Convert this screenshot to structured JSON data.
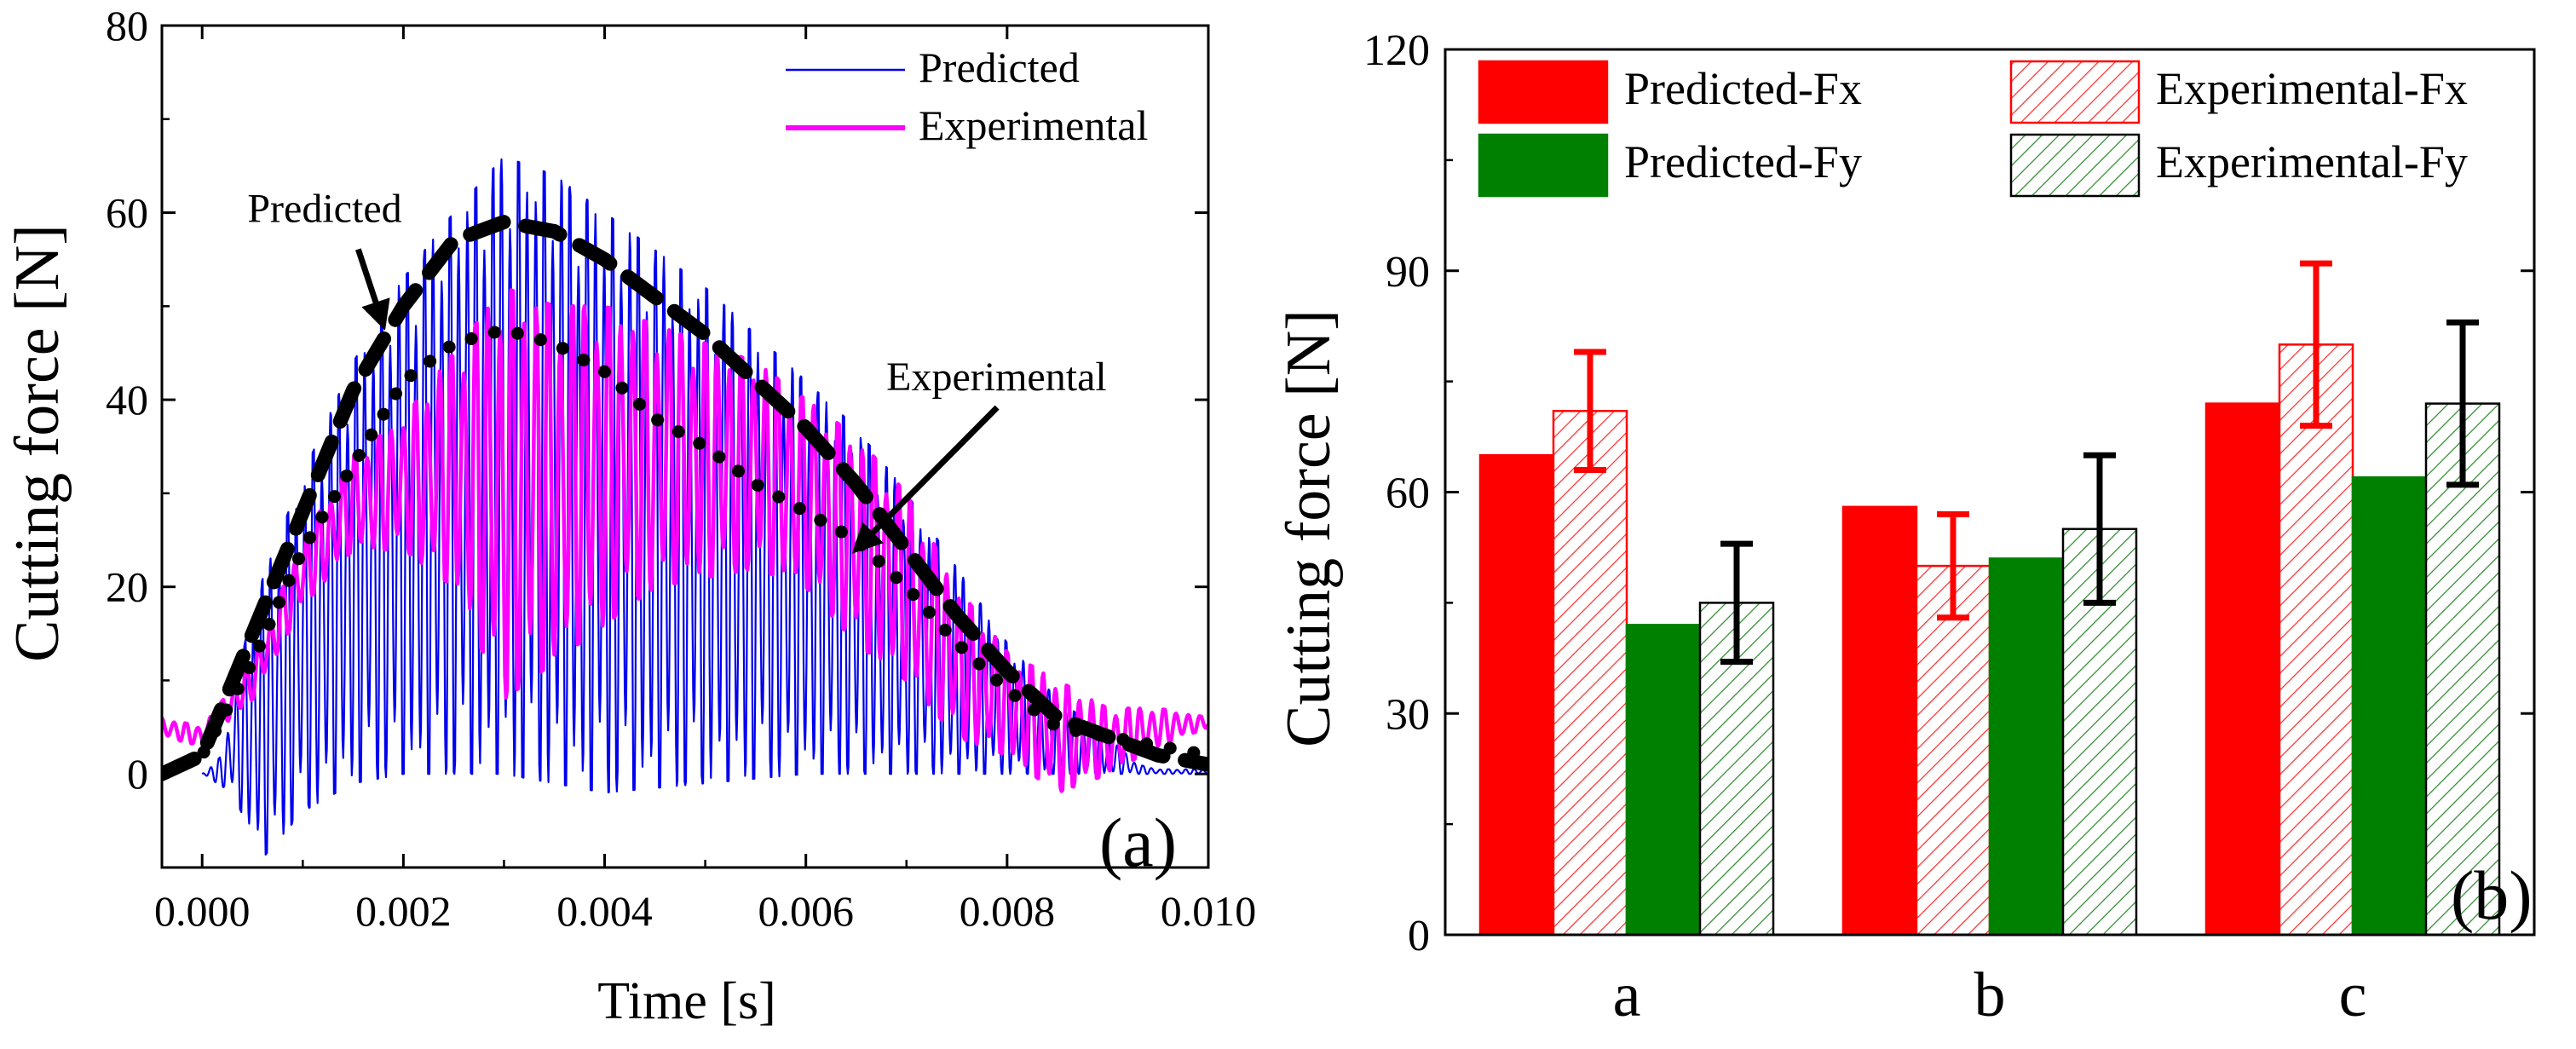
{
  "chart_data": [
    {
      "type": "line",
      "panel_label": "(a)",
      "xlabel": "Time  [s]",
      "ylabel": "Cutting force  [N]",
      "xlim": [
        -0.0004,
        0.01
      ],
      "ylim": [
        -10,
        80
      ],
      "xticks": [
        0.0,
        0.002,
        0.004,
        0.006,
        0.008,
        0.01
      ],
      "xtick_labels": [
        "0.000",
        "0.002",
        "0.004",
        "0.006",
        "0.008",
        "0.010"
      ],
      "yticks": [
        0,
        20,
        40,
        60,
        80
      ],
      "ytick_labels": [
        "0",
        "20",
        "40",
        "60",
        "80"
      ],
      "legend": {
        "position": "top-right",
        "entries": [
          {
            "name": "Predicted",
            "color": "#0000ee"
          },
          {
            "name": "Experimental",
            "color": "#ff00ff"
          }
        ]
      },
      "series": [
        {
          "name": "Predicted",
          "color": "#0000ee",
          "style": "oscillating",
          "period": 8.5e-05,
          "upper_envelope": [
            [
              0.0,
              0
            ],
            [
              0.0002,
              2
            ],
            [
              0.0005,
              18
            ],
            [
              0.001,
              32
            ],
            [
              0.0015,
              44
            ],
            [
              0.002,
              53
            ],
            [
              0.0025,
              60
            ],
            [
              0.003,
              66
            ],
            [
              0.0035,
              64
            ],
            [
              0.004,
              60
            ],
            [
              0.0045,
              56
            ],
            [
              0.005,
              52
            ],
            [
              0.0055,
              47
            ],
            [
              0.006,
              42
            ],
            [
              0.0065,
              37
            ],
            [
              0.007,
              30
            ],
            [
              0.0075,
              22
            ],
            [
              0.008,
              14
            ],
            [
              0.0085,
              8
            ],
            [
              0.009,
              4
            ],
            [
              0.0093,
              1
            ],
            [
              0.0095,
              0.5
            ],
            [
              0.01,
              0.5
            ]
          ],
          "lower_envelope": [
            [
              0.0,
              0
            ],
            [
              0.0003,
              -2
            ],
            [
              0.0006,
              -9
            ],
            [
              0.001,
              -4
            ],
            [
              0.0015,
              -1
            ],
            [
              0.002,
              0
            ],
            [
              0.003,
              0
            ],
            [
              0.004,
              -2
            ],
            [
              0.005,
              -1
            ],
            [
              0.006,
              0
            ],
            [
              0.007,
              0
            ],
            [
              0.008,
              0
            ],
            [
              0.009,
              0
            ],
            [
              0.01,
              0
            ]
          ]
        },
        {
          "name": "Experimental",
          "color": "#ff00ff",
          "style": "oscillating",
          "period": 0.00012,
          "upper_envelope": [
            [
              -0.0004,
              6
            ],
            [
              0.0,
              5
            ],
            [
              0.0005,
              12
            ],
            [
              0.001,
              25
            ],
            [
              0.0015,
              34
            ],
            [
              0.002,
              38
            ],
            [
              0.0025,
              45
            ],
            [
              0.003,
              52
            ],
            [
              0.0035,
              50
            ],
            [
              0.004,
              50
            ],
            [
              0.0045,
              48
            ],
            [
              0.005,
              46
            ],
            [
              0.0055,
              44
            ],
            [
              0.006,
              40
            ],
            [
              0.0065,
              36
            ],
            [
              0.007,
              30
            ],
            [
              0.0075,
              20
            ],
            [
              0.008,
              13
            ],
            [
              0.0085,
              10
            ],
            [
              0.009,
              7
            ],
            [
              0.0095,
              7
            ],
            [
              0.01,
              6
            ]
          ],
          "lower_envelope": [
            [
              -0.0004,
              4
            ],
            [
              0.0,
              3
            ],
            [
              0.0005,
              8
            ],
            [
              0.001,
              18
            ],
            [
              0.0015,
              24
            ],
            [
              0.002,
              24
            ],
            [
              0.0025,
              20
            ],
            [
              0.003,
              8
            ],
            [
              0.0035,
              12
            ],
            [
              0.004,
              16
            ],
            [
              0.0045,
              20
            ],
            [
              0.005,
              21
            ],
            [
              0.0055,
              22
            ],
            [
              0.006,
              20
            ],
            [
              0.0065,
              14
            ],
            [
              0.007,
              10
            ],
            [
              0.0075,
              4
            ],
            [
              0.008,
              2
            ],
            [
              0.0085,
              -2
            ],
            [
              0.009,
              0
            ],
            [
              0.0095,
              3
            ],
            [
              0.01,
              5
            ]
          ]
        },
        {
          "name": "Predicted trend (dashed)",
          "color": "#000000",
          "style": "dashed",
          "points": [
            [
              -0.0004,
              0
            ],
            [
              0.0,
              2
            ],
            [
              0.0005,
              15
            ],
            [
              0.001,
              28
            ],
            [
              0.0015,
              41
            ],
            [
              0.002,
              50
            ],
            [
              0.0025,
              57
            ],
            [
              0.003,
              59
            ],
            [
              0.0035,
              58
            ],
            [
              0.004,
              55
            ],
            [
              0.0045,
              51
            ],
            [
              0.005,
              47
            ],
            [
              0.0055,
              42
            ],
            [
              0.006,
              37
            ],
            [
              0.0065,
              31
            ],
            [
              0.007,
              24
            ],
            [
              0.0075,
              17
            ],
            [
              0.008,
              11
            ],
            [
              0.0085,
              6
            ],
            [
              0.009,
              4
            ],
            [
              0.0095,
              2
            ],
            [
              0.01,
              1
            ]
          ]
        },
        {
          "name": "Experimental trend (dotted)",
          "color": "#000000",
          "style": "dotted",
          "points": [
            [
              -0.0004,
              0
            ],
            [
              0.0,
              2
            ],
            [
              0.0005,
              12
            ],
            [
              0.001,
              24
            ],
            [
              0.0015,
              33
            ],
            [
              0.002,
              42
            ],
            [
              0.0025,
              46
            ],
            [
              0.003,
              47.5
            ],
            [
              0.0035,
              46
            ],
            [
              0.004,
              43
            ],
            [
              0.0045,
              38
            ],
            [
              0.005,
              35
            ],
            [
              0.0055,
              31
            ],
            [
              0.006,
              28
            ],
            [
              0.0065,
              25
            ],
            [
              0.007,
              20
            ],
            [
              0.0075,
              14
            ],
            [
              0.008,
              9
            ],
            [
              0.0085,
              5
            ],
            [
              0.009,
              4
            ],
            [
              0.0095,
              3
            ],
            [
              0.01,
              2
            ]
          ]
        }
      ],
      "annotations": [
        {
          "text": "Predicted",
          "x": 0.00045,
          "y": 59,
          "arrow_to": [
            0.0018,
            48
          ]
        },
        {
          "text": "Experimental",
          "x": 0.0068,
          "y": 41,
          "arrow_to": [
            0.0065,
            24
          ]
        }
      ]
    },
    {
      "type": "bar",
      "panel_label": "(b)",
      "xlabel": "",
      "ylabel": "Cutting force  [N]",
      "ylim": [
        0,
        120
      ],
      "yticks": [
        0,
        30,
        60,
        90,
        120
      ],
      "ytick_labels": [
        "0",
        "30",
        "60",
        "90",
        "120"
      ],
      "categories": [
        "a",
        "b",
        "c"
      ],
      "legend": {
        "position": "top",
        "entries": [
          {
            "name": "Predicted-Fx",
            "color": "#ff0000",
            "pattern": "solid"
          },
          {
            "name": "Experimental-Fx",
            "color": "#ff0000",
            "pattern": "hatched"
          },
          {
            "name": "Predicted-Fy",
            "color": "#008000",
            "pattern": "solid"
          },
          {
            "name": "Experimental-Fy",
            "color": "#008000",
            "pattern": "hatched"
          }
        ]
      },
      "series": [
        {
          "name": "Predicted-Fx",
          "color": "#ff0000",
          "pattern": "solid",
          "values": [
            65,
            58,
            72
          ]
        },
        {
          "name": "Experimental-Fx",
          "color": "#ff0000",
          "pattern": "hatched",
          "values": [
            71,
            50,
            80
          ],
          "errors": [
            8,
            7,
            11
          ],
          "error_color": "#ff0000"
        },
        {
          "name": "Predicted-Fy",
          "color": "#008000",
          "pattern": "solid",
          "values": [
            42,
            51,
            62
          ]
        },
        {
          "name": "Experimental-Fy",
          "color": "#008000",
          "pattern": "hatched",
          "values": [
            45,
            55,
            72
          ],
          "errors": [
            8,
            10,
            11
          ],
          "error_color": "#000000"
        }
      ]
    }
  ]
}
